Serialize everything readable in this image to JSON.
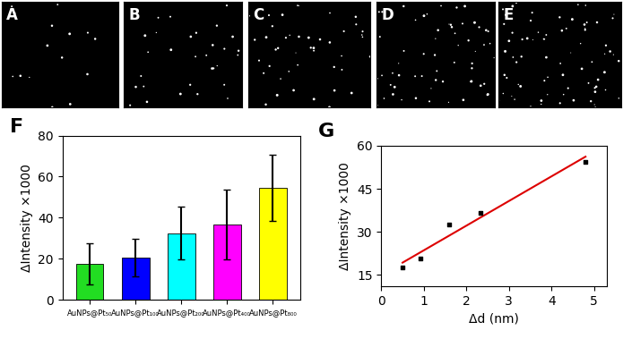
{
  "images": {
    "labels": [
      "A",
      "B",
      "C",
      "D",
      "E"
    ]
  },
  "chart_data": [
    {
      "type": "bar",
      "title": "F",
      "categories": [
        "AuNPs@Pt₅₀",
        "AuNPs@Pt₁₀₀",
        "AuNPs@Pt₂₀₀",
        "AuNPs@Pt₄₀₀",
        "AuNPs@Pt₈₀₀"
      ],
      "values": [
        17.5,
        20.5,
        32.5,
        36.5,
        54.5
      ],
      "errors": [
        10,
        9,
        13,
        17,
        16
      ],
      "colors": [
        "#22dd22",
        "#0000ff",
        "#00ffff",
        "#ff00ff",
        "#ffff00"
      ],
      "y_label": "ΔIntensity ×1000",
      "ylim": [
        0,
        80
      ],
      "yticks": [
        0,
        20,
        40,
        60,
        80
      ]
    },
    {
      "type": "scatter",
      "title": "G",
      "x_label": "Δd (nm)",
      "y_label": "ΔIntensity ×1000",
      "xlim": [
        0,
        5.3
      ],
      "xticks": [
        0,
        1,
        2,
        3,
        4,
        5
      ],
      "ylim": [
        11,
        60
      ],
      "yticks": [
        15,
        30,
        45,
        60
      ],
      "series": [
        {
          "type": "scatter",
          "color": "#000000",
          "marker": "square",
          "x": [
            0.5,
            0.92,
            1.6,
            2.33,
            4.8
          ],
          "values": [
            17.5,
            20.5,
            32.5,
            36.5,
            54.5
          ]
        },
        {
          "type": "line",
          "color": "#dd0000",
          "line_style": "solid",
          "x": [
            0.5,
            4.8
          ],
          "values": [
            19.2,
            56.2
          ]
        }
      ]
    }
  ]
}
